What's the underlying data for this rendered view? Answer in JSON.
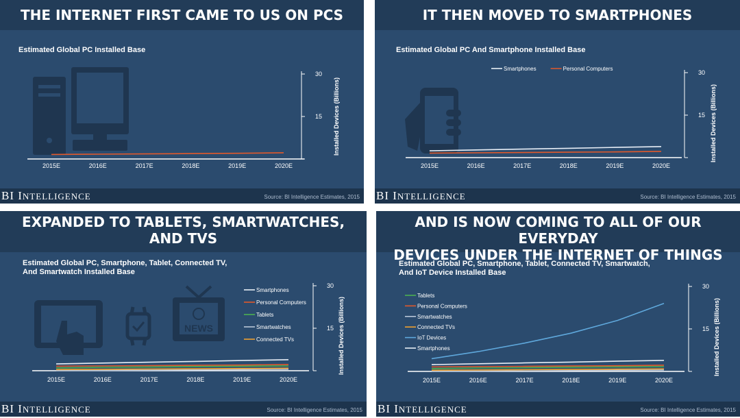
{
  "panels": [
    {
      "heading": [
        "THE INTERNET FIRST CAME TO US ON PCS"
      ],
      "subtitle": [
        "Estimated Global PC Installed Base"
      ],
      "source": "Source: BI Intelligence Estimates, 2015"
    },
    {
      "heading": [
        "IT THEN MOVED TO SMARTPHONES"
      ],
      "subtitle": [
        "Estimated Global PC And Smartphone Installed Base"
      ],
      "source": "Source: BI Intelligence Estimates, 2015"
    },
    {
      "heading": [
        "EXPANDED TO TABLETS, SMARTWATCHES,",
        "AND TVS"
      ],
      "subtitle": [
        "Estimated Global PC, Smartphone, Tablet, Connected TV,",
        "And Smartwatch Installed Base"
      ],
      "source": "Source: BI Intelligence Estimates, 2015"
    },
    {
      "heading": [
        "AND IS NOW COMING TO ALL OF OUR EVERYDAY",
        "DEVICES UNDER THE INTERNET OF THINGS"
      ],
      "subtitle": [
        "Estimated Global PC, Smartphone, Tablet, Connected TV, Smartwatch,",
        "And IoT Device Installed Base"
      ],
      "source": "Source: BI Intelligence Estimates, 2015"
    }
  ],
  "brand": {
    "first": "BI",
    "second_cap": "I",
    "second_rest": "NTELLIGENCE"
  },
  "icons": [
    "desktop-computer-icon",
    "hand-holding-phone-icon",
    "tablet-touch-icon",
    "smartwatch-icon",
    "tv-news-icon"
  ],
  "tv_icon_text": "NEWS",
  "colors": {
    "Smartphones": "#e8eef6",
    "Personal Computers": "#e2592b",
    "Tablets": "#4caf50",
    "Smartwatches": "#b9c6d8",
    "Connected TVs": "#f0a030",
    "IoT Devices": "#5fa8dc",
    "background": "#2b4b6e",
    "banner": "#223c58"
  },
  "chart_data": [
    {
      "type": "line",
      "x": [
        "2015E",
        "2016E",
        "2017E",
        "2018E",
        "2019E",
        "2020E"
      ],
      "ylabel": "Installed Devices (Billions)",
      "ylim": [
        0,
        30
      ],
      "yticks": [
        0,
        15,
        30
      ],
      "legend": false,
      "series": [
        {
          "name": "Personal Computers",
          "values": [
            1.6,
            1.7,
            1.8,
            1.9,
            2.0,
            2.2
          ]
        }
      ]
    },
    {
      "type": "line",
      "x": [
        "2015E",
        "2016E",
        "2017E",
        "2018E",
        "2019E",
        "2020E"
      ],
      "ylabel": "Installed Devices (Billions)",
      "ylim": [
        0,
        30
      ],
      "yticks": [
        0,
        15,
        30
      ],
      "legend": true,
      "series": [
        {
          "name": "Smartphones",
          "values": [
            2.4,
            2.7,
            3.0,
            3.3,
            3.6,
            3.9
          ]
        },
        {
          "name": "Personal Computers",
          "values": [
            1.6,
            1.7,
            1.8,
            1.9,
            2.0,
            2.2
          ]
        }
      ]
    },
    {
      "type": "line",
      "x": [
        "2015E",
        "2016E",
        "2017E",
        "2018E",
        "2019E",
        "2020E"
      ],
      "ylabel": "Installed Devices (Billions)",
      "ylim": [
        0,
        30
      ],
      "yticks": [
        0,
        15,
        30
      ],
      "legend": true,
      "series": [
        {
          "name": "Smartphones",
          "values": [
            2.4,
            2.7,
            3.0,
            3.3,
            3.6,
            3.9
          ]
        },
        {
          "name": "Personal Computers",
          "values": [
            1.6,
            1.7,
            1.8,
            1.9,
            2.0,
            2.2
          ]
        },
        {
          "name": "Tablets",
          "values": [
            1.0,
            1.2,
            1.3,
            1.5,
            1.6,
            1.7
          ]
        },
        {
          "name": "Smartwatches",
          "values": [
            0.05,
            0.1,
            0.2,
            0.3,
            0.4,
            0.5
          ]
        },
        {
          "name": "Connected TVs",
          "values": [
            0.4,
            0.5,
            0.6,
            0.7,
            0.8,
            0.9
          ]
        }
      ]
    },
    {
      "type": "line",
      "x": [
        "2015E",
        "2016E",
        "2017E",
        "2018E",
        "2019E",
        "2020E"
      ],
      "ylabel": "Installed Devices (Billions)",
      "ylim": [
        0,
        30
      ],
      "yticks": [
        0,
        15,
        30
      ],
      "legend": true,
      "series": [
        {
          "name": "Tablets",
          "values": [
            1.0,
            1.2,
            1.3,
            1.5,
            1.6,
            1.7
          ]
        },
        {
          "name": "Personal Computers",
          "values": [
            1.6,
            1.7,
            1.8,
            1.9,
            2.0,
            2.2
          ]
        },
        {
          "name": "Smartwatches",
          "values": [
            0.05,
            0.1,
            0.2,
            0.3,
            0.4,
            0.5
          ]
        },
        {
          "name": "Connected TVs",
          "values": [
            0.4,
            0.5,
            0.6,
            0.7,
            0.8,
            0.9
          ]
        },
        {
          "name": "IoT Devices",
          "values": [
            4.5,
            7.0,
            10.0,
            13.5,
            18.0,
            24.0
          ]
        },
        {
          "name": "Smartphones",
          "values": [
            2.4,
            2.7,
            3.0,
            3.3,
            3.6,
            3.9
          ]
        }
      ]
    }
  ]
}
